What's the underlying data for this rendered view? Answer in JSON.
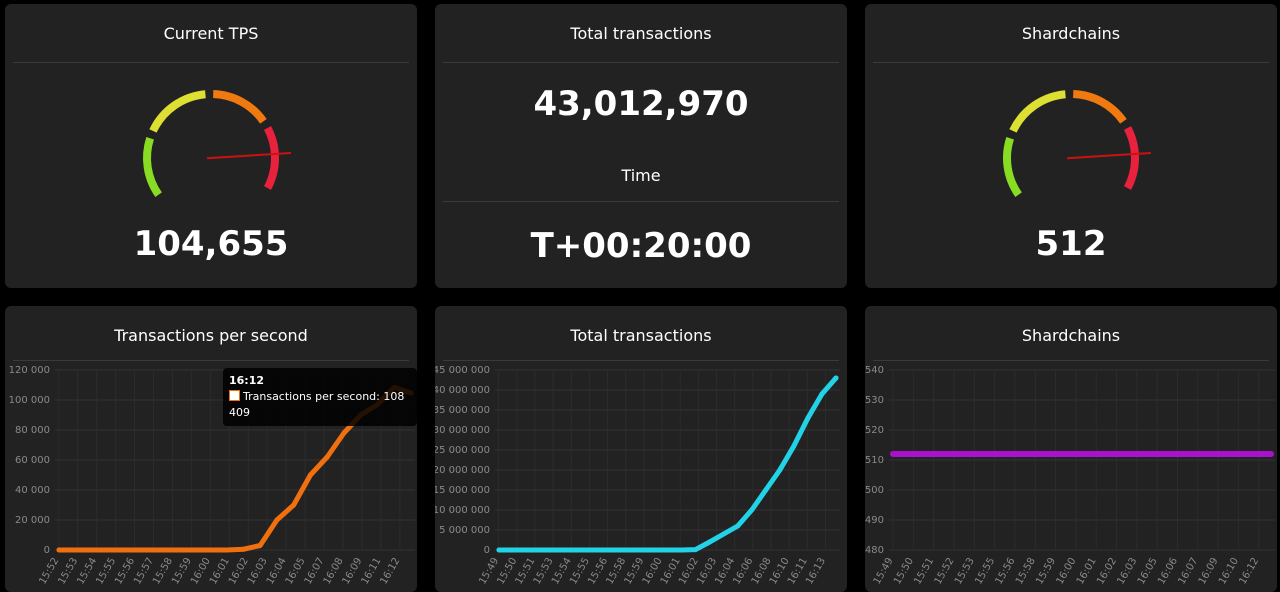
{
  "panels": {
    "tps": {
      "title": "Current TPS",
      "value": "104,655",
      "needle_fraction": 0.87
    },
    "total": {
      "title": "Total transactions",
      "value": "43,012,970",
      "time_title": "Time",
      "time_value": "T+00:20:00"
    },
    "shards": {
      "title": "Shardchains",
      "value": "512",
      "needle_fraction": 0.87
    }
  },
  "gauge_colors": {
    "green": "#88dd22",
    "yellow": "#dde033",
    "orange": "#f07a10",
    "red": "#e8213d",
    "needle": "#cc1111"
  },
  "charts": {
    "tps": {
      "title": "Transactions per second",
      "color": "#f07010"
    },
    "total": {
      "title": "Total transactions",
      "color": "#22d3e8"
    },
    "shards": {
      "title": "Shardchains",
      "color": "#aa11cc"
    }
  },
  "tooltip": {
    "title": "16:12",
    "label": "Transactions per second: 108 409"
  },
  "chart_data": [
    {
      "type": "line",
      "title": "Transactions per second",
      "series": [
        {
          "name": "Transactions per second",
          "x": [
            "15:52",
            "15:53",
            "15:54",
            "15:55",
            "15:56",
            "15:57",
            "15:58",
            "15:59",
            "16:00",
            "16:01",
            "16:02",
            "16:03",
            "16:04",
            "16:05",
            "16:06",
            "16:07",
            "16:08",
            "16:09",
            "16:10",
            "16:11",
            "16:12",
            "16:13"
          ],
          "values": [
            0,
            0,
            0,
            0,
            0,
            0,
            0,
            0,
            0,
            0,
            0,
            500,
            3000,
            20000,
            30000,
            50000,
            62000,
            78000,
            90000,
            97000,
            108409,
            104655
          ]
        }
      ],
      "xticks": [
        "15:52",
        "15:53",
        "15:54",
        "15:55",
        "15:56",
        "15:57",
        "15:58",
        "15:59",
        "16:00",
        "16:01",
        "16:02",
        "16:03",
        "16:04",
        "16:05",
        "16:07",
        "16:08",
        "16:09",
        "16:11",
        "16:12"
      ],
      "yticks": [
        "0",
        "20 000",
        "40 000",
        "60 000",
        "80 000",
        "100 000",
        "120 000"
      ],
      "ylim": [
        0,
        120000
      ]
    },
    {
      "type": "line",
      "title": "Total transactions",
      "series": [
        {
          "name": "Total transactions",
          "x": [
            "15:49",
            "15:50",
            "15:51",
            "15:52",
            "15:53",
            "15:54",
            "15:55",
            "15:56",
            "15:57",
            "15:58",
            "15:59",
            "16:00",
            "16:01",
            "16:02",
            "16:03",
            "16:04",
            "16:05",
            "16:06",
            "16:07",
            "16:08",
            "16:09",
            "16:10",
            "16:11",
            "16:12",
            "16:13"
          ],
          "values": [
            0,
            0,
            0,
            0,
            0,
            0,
            0,
            0,
            0,
            0,
            0,
            0,
            0,
            0,
            100000,
            2000000,
            4000000,
            6000000,
            10000000,
            15000000,
            20000000,
            26000000,
            33000000,
            39000000,
            43012970
          ]
        }
      ],
      "xticks": [
        "15:49",
        "15:50",
        "15:51",
        "15:53",
        "15:54",
        "15:55",
        "15:56",
        "15:58",
        "15:59",
        "16:00",
        "16:01",
        "16:02",
        "16:03",
        "16:04",
        "16:06",
        "16:08",
        "16:10",
        "16:11",
        "16:13"
      ],
      "yticks": [
        "0",
        "5 000 000",
        "10 000 000",
        "15 000 000",
        "20 000 000",
        "25 000 000",
        "30 000 000",
        "35 000 000",
        "40 000 000",
        "45 000 000"
      ],
      "ylim": [
        0,
        45000000
      ]
    },
    {
      "type": "line",
      "title": "Shardchains",
      "series": [
        {
          "name": "Shardchains",
          "x": [
            "15:49",
            "16:12"
          ],
          "values": [
            512,
            512
          ]
        }
      ],
      "xticks": [
        "15:49",
        "15:50",
        "15:51",
        "15:52",
        "15:53",
        "15:55",
        "15:56",
        "15:58",
        "15:59",
        "16:00",
        "16:01",
        "16:02",
        "16:03",
        "16:05",
        "16:06",
        "16:07",
        "16:09",
        "16:10",
        "16:12"
      ],
      "yticks": [
        "480",
        "490",
        "500",
        "510",
        "520",
        "530",
        "540"
      ],
      "ylim": [
        480,
        540
      ]
    }
  ]
}
